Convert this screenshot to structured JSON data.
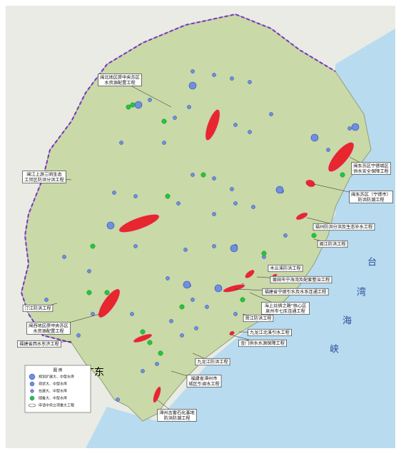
{
  "callouts": [
    {
      "lines": [
        "闽北地区原中央苏区",
        "水资源配置工程"
      ]
    },
    {
      "lines": [
        "闽江上游三明生态",
        "工贸区防洪分洪工程"
      ]
    },
    {
      "lines": [
        "闽东苏区宁德城区",
        "供水安全保障工程"
      ]
    },
    {
      "lines": [
        "闽东苏区（宁德市）",
        "防洪防潮工程"
      ]
    },
    {
      "lines": [
        "福州防洪分洪及生态补水工程"
      ]
    },
    {
      "lines": [
        "闽江防洪工程"
      ]
    },
    {
      "lines": [
        "木兰溪防洪工程"
      ]
    },
    {
      "lines": [
        "莆田市宁海湾及配套整治工程"
      ]
    },
    {
      "lines": [
        "福建省宁德引水及水系连通工程"
      ]
    },
    {
      "lines": [
        "海上丝绸之路\"核心区",
        "泉州市七库连通工程"
      ]
    },
    {
      "lines": [
        "晋江防洪工程"
      ]
    },
    {
      "lines": [
        "九龙江北溪引水工程"
      ]
    },
    {
      "lines": [
        "金门供水水源保障工程"
      ]
    },
    {
      "lines": [
        "九龙江防洪工程"
      ]
    },
    {
      "lines": [
        "福建省漳州市",
        "城区引调水工程"
      ]
    },
    {
      "lines": [
        "漳州古雷石化基地",
        "防洪防潮工程"
      ]
    },
    {
      "lines": [
        "汀江防洪工程"
      ]
    },
    {
      "lines": [
        "闽西地区原中央苏区",
        "水资源配置工程"
      ]
    },
    {
      "lines": [
        "福建省西水东济工程"
      ]
    }
  ],
  "regions": {
    "guangdong": "广东",
    "strait": [
      "台",
      "湾",
      "海",
      "峡"
    ]
  },
  "legend": {
    "title": "图 例",
    "items": [
      "规划扩建大、中型水库",
      "现状大、中型水库",
      "在建大、中型水库",
      "储备大、中型水库",
      "申请中央立项重大工程"
    ]
  }
}
